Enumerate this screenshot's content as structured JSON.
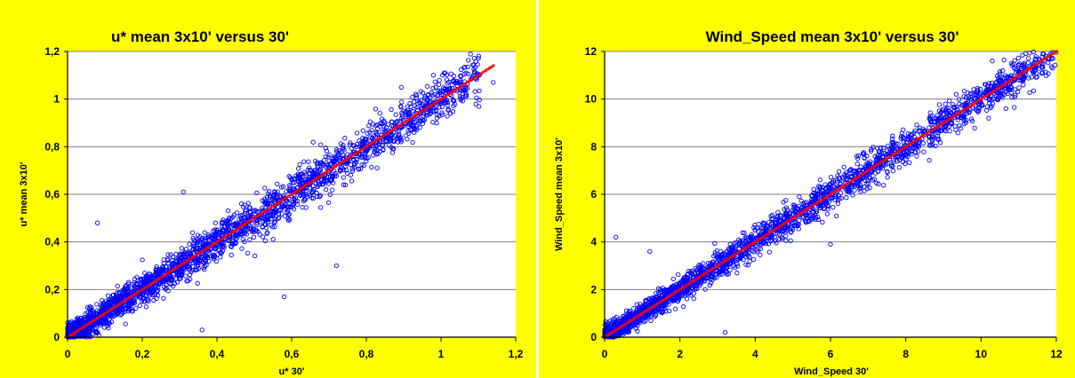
{
  "colors": {
    "panel_background": "#ffff00",
    "plot_background": "#ffffff",
    "gridline": "#808080",
    "scatter_series": "#0000ff",
    "fit_series": "#ff0000"
  },
  "chart_data": [
    {
      "type": "scatter",
      "title": "u* mean 3x10' versus 30'",
      "xlabel": "u* 30'",
      "ylabel": "u* mean 3x10'",
      "xlim": [
        0,
        1.2
      ],
      "ylim": [
        0,
        1.2
      ],
      "x_ticks": [
        "0",
        "0,2",
        "0,4",
        "0,6",
        "0,8",
        "1",
        "1,2"
      ],
      "y_ticks": [
        "0",
        "0,2",
        "0,4",
        "0,6",
        "0,8",
        "1",
        "1,2"
      ],
      "grid": "horizontal major gridlines",
      "legend": "none",
      "series": [
        {
          "marker": "open-circle",
          "color": "#0000ff",
          "approx_relation": "y ≈ x",
          "x_range": [
            0,
            1.15
          ],
          "spread_sd": 0.045,
          "density": "very dense below 0.3, thinning above 0.8"
        },
        {
          "marker": "plus",
          "color": "#ff0000",
          "relation": "y = x",
          "x_range": [
            0,
            1.14
          ]
        }
      ],
      "notable_points": [
        [
          0.08,
          0.48
        ],
        [
          0.31,
          0.61
        ],
        [
          0.36,
          0.03
        ],
        [
          0.58,
          0.17
        ],
        [
          0.72,
          0.3
        ],
        [
          0.98,
          1.1
        ],
        [
          1.14,
          1.07
        ]
      ]
    },
    {
      "type": "scatter",
      "title": "Wind_Speed mean 3x10' versus 30'",
      "xlabel": "Wind_Speed 30'",
      "ylabel": "Wind_Speed mean 3x10'",
      "xlim": [
        0,
        12
      ],
      "ylim": [
        0,
        12
      ],
      "x_ticks": [
        "0",
        "2",
        "4",
        "6",
        "8",
        "10",
        "12"
      ],
      "y_ticks": [
        "0",
        "2",
        "4",
        "6",
        "8",
        "10",
        "12"
      ],
      "grid": "horizontal major gridlines",
      "legend": "none",
      "series": [
        {
          "marker": "open-circle",
          "color": "#0000ff",
          "approx_relation": "y ≈ x",
          "x_range": [
            0,
            12
          ],
          "spread_sd": 0.35,
          "density": "very dense below 4, thinning above 9"
        },
        {
          "marker": "plus",
          "color": "#ff0000",
          "relation": "y = x",
          "x_range": [
            0,
            12
          ]
        }
      ],
      "notable_points": [
        [
          0.3,
          4.2
        ],
        [
          1.2,
          3.6
        ],
        [
          3.2,
          0.2
        ],
        [
          6.0,
          3.9
        ],
        [
          10.3,
          11.6
        ],
        [
          11.9,
          11.3
        ]
      ]
    }
  ]
}
